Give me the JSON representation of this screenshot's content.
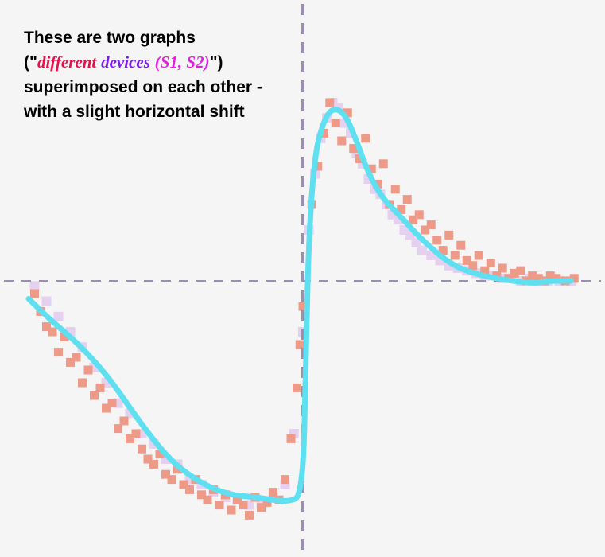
{
  "caption": {
    "line1": "These are two graphs",
    "line2_open": "(\"",
    "line2_word1": "different",
    "line2_word2": "devices",
    "line2_word3": "(S1, S2)",
    "line2_close": "\")",
    "line3": "superimposed on each other -",
    "line4": "with a slight horizontal shift"
  },
  "colors": {
    "background": "#f5f5f5",
    "axis": "#9a8fb0",
    "fit_curve": "#5ee0f0",
    "dots_front": "#ee9a88",
    "dots_back": "#e6d0f0",
    "word_different": "#e8104a",
    "word_devices": "#7a1ee0",
    "word_s1s2": "#e020e0"
  },
  "chart_data": {
    "type": "scatter",
    "title": "",
    "xlabel": "",
    "ylabel": "",
    "axes": {
      "style": "dashed crosshair",
      "x_tick_labels": [],
      "y_tick_labels": []
    },
    "xlim": [
      -1,
      1
    ],
    "ylim": [
      -1,
      1
    ],
    "grid": false,
    "legend": "none",
    "fit_curve": {
      "x": [
        -0.92,
        -0.85,
        -0.75,
        -0.65,
        -0.55,
        -0.45,
        -0.35,
        -0.25,
        -0.15,
        -0.05,
        0.0,
        0.01,
        0.02,
        0.04,
        0.07,
        0.1,
        0.14,
        0.18,
        0.22,
        0.27,
        0.33,
        0.4,
        0.5,
        0.6,
        0.7,
        0.78,
        0.82,
        0.9
      ],
      "y": [
        -0.07,
        -0.15,
        -0.25,
        -0.38,
        -0.55,
        -0.7,
        -0.79,
        -0.84,
        -0.85,
        -0.87,
        -0.84,
        -0.3,
        0.18,
        0.5,
        0.63,
        0.68,
        0.66,
        0.55,
        0.42,
        0.32,
        0.25,
        0.16,
        0.06,
        0.02,
        0.0,
        -0.01,
        0.0,
        0.0
      ]
    },
    "series": [
      {
        "x": [
          -0.9,
          -0.88,
          -0.86,
          -0.84,
          -0.82,
          -0.8,
          -0.78,
          -0.76,
          -0.74,
          -0.72,
          -0.7,
          -0.68,
          -0.66,
          -0.64,
          -0.62,
          -0.6,
          -0.58,
          -0.56,
          -0.54,
          -0.52,
          -0.5,
          -0.48,
          -0.46,
          -0.44,
          -0.42,
          -0.4,
          -0.38,
          -0.36,
          -0.34,
          -0.32,
          -0.3,
          -0.28,
          -0.26,
          -0.24,
          -0.22,
          -0.2,
          -0.18,
          -0.16,
          -0.14,
          -0.12,
          -0.1,
          -0.08,
          -0.06,
          -0.04,
          -0.02,
          -0.01,
          0.0,
          0.03,
          0.05,
          0.07,
          0.09,
          0.11,
          0.13,
          0.15,
          0.17,
          0.19,
          0.21,
          0.23,
          0.25,
          0.27,
          0.29,
          0.31,
          0.33,
          0.35,
          0.37,
          0.39,
          0.41,
          0.43,
          0.45,
          0.47,
          0.49,
          0.51,
          0.53,
          0.55,
          0.57,
          0.59,
          0.61,
          0.63,
          0.65,
          0.67,
          0.69,
          0.71,
          0.73,
          0.75,
          0.77,
          0.79,
          0.81,
          0.83,
          0.85,
          0.88,
          0.91
        ],
        "y": [
          -0.05,
          -0.12,
          -0.18,
          -0.2,
          -0.28,
          -0.22,
          -0.32,
          -0.3,
          -0.4,
          -0.35,
          -0.45,
          -0.42,
          -0.5,
          -0.48,
          -0.58,
          -0.55,
          -0.62,
          -0.6,
          -0.66,
          -0.7,
          -0.72,
          -0.68,
          -0.76,
          -0.78,
          -0.74,
          -0.8,
          -0.82,
          -0.78,
          -0.84,
          -0.86,
          -0.82,
          -0.88,
          -0.84,
          -0.9,
          -0.86,
          -0.88,
          -0.92,
          -0.85,
          -0.89,
          -0.87,
          -0.83,
          -0.86,
          -0.78,
          -0.62,
          -0.42,
          -0.25,
          -0.1,
          0.3,
          0.45,
          0.58,
          0.7,
          0.62,
          0.55,
          0.66,
          0.52,
          0.48,
          0.56,
          0.44,
          0.38,
          0.46,
          0.3,
          0.36,
          0.28,
          0.32,
          0.24,
          0.26,
          0.2,
          0.22,
          0.16,
          0.12,
          0.18,
          0.1,
          0.14,
          0.08,
          0.06,
          0.1,
          0.04,
          0.07,
          0.02,
          0.05,
          0.01,
          0.03,
          0.04,
          0.0,
          0.02,
          0.01,
          0.0,
          0.02,
          0.01,
          0.0,
          0.01
        ]
      },
      {
        "x": [
          -0.9,
          -0.86,
          -0.82,
          -0.78,
          -0.74,
          -0.7,
          -0.66,
          -0.62,
          -0.58,
          -0.54,
          -0.5,
          -0.46,
          -0.42,
          -0.38,
          -0.34,
          -0.3,
          -0.26,
          -0.22,
          -0.18,
          -0.14,
          -0.1,
          -0.06,
          -0.03,
          0.0,
          0.02,
          0.04,
          0.06,
          0.08,
          0.1,
          0.12,
          0.14,
          0.16,
          0.18,
          0.2,
          0.22,
          0.24,
          0.26,
          0.28,
          0.3,
          0.32,
          0.34,
          0.36,
          0.38,
          0.4,
          0.43,
          0.46,
          0.49,
          0.52,
          0.55,
          0.58,
          0.61,
          0.64,
          0.67,
          0.7,
          0.73,
          0.76,
          0.79,
          0.82,
          0.86,
          0.9
        ],
        "y": [
          -0.02,
          -0.08,
          -0.14,
          -0.2,
          -0.26,
          -0.34,
          -0.4,
          -0.48,
          -0.52,
          -0.6,
          -0.64,
          -0.7,
          -0.72,
          -0.78,
          -0.8,
          -0.83,
          -0.85,
          -0.86,
          -0.88,
          -0.87,
          -0.85,
          -0.8,
          -0.6,
          -0.2,
          0.2,
          0.42,
          0.56,
          0.64,
          0.7,
          0.68,
          0.62,
          0.58,
          0.5,
          0.46,
          0.4,
          0.36,
          0.34,
          0.3,
          0.26,
          0.24,
          0.2,
          0.18,
          0.15,
          0.12,
          0.1,
          0.08,
          0.06,
          0.05,
          0.04,
          0.03,
          0.02,
          0.02,
          0.01,
          0.01,
          0.0,
          0.01,
          0.0,
          0.0,
          0.0,
          0.0
        ]
      }
    ]
  }
}
